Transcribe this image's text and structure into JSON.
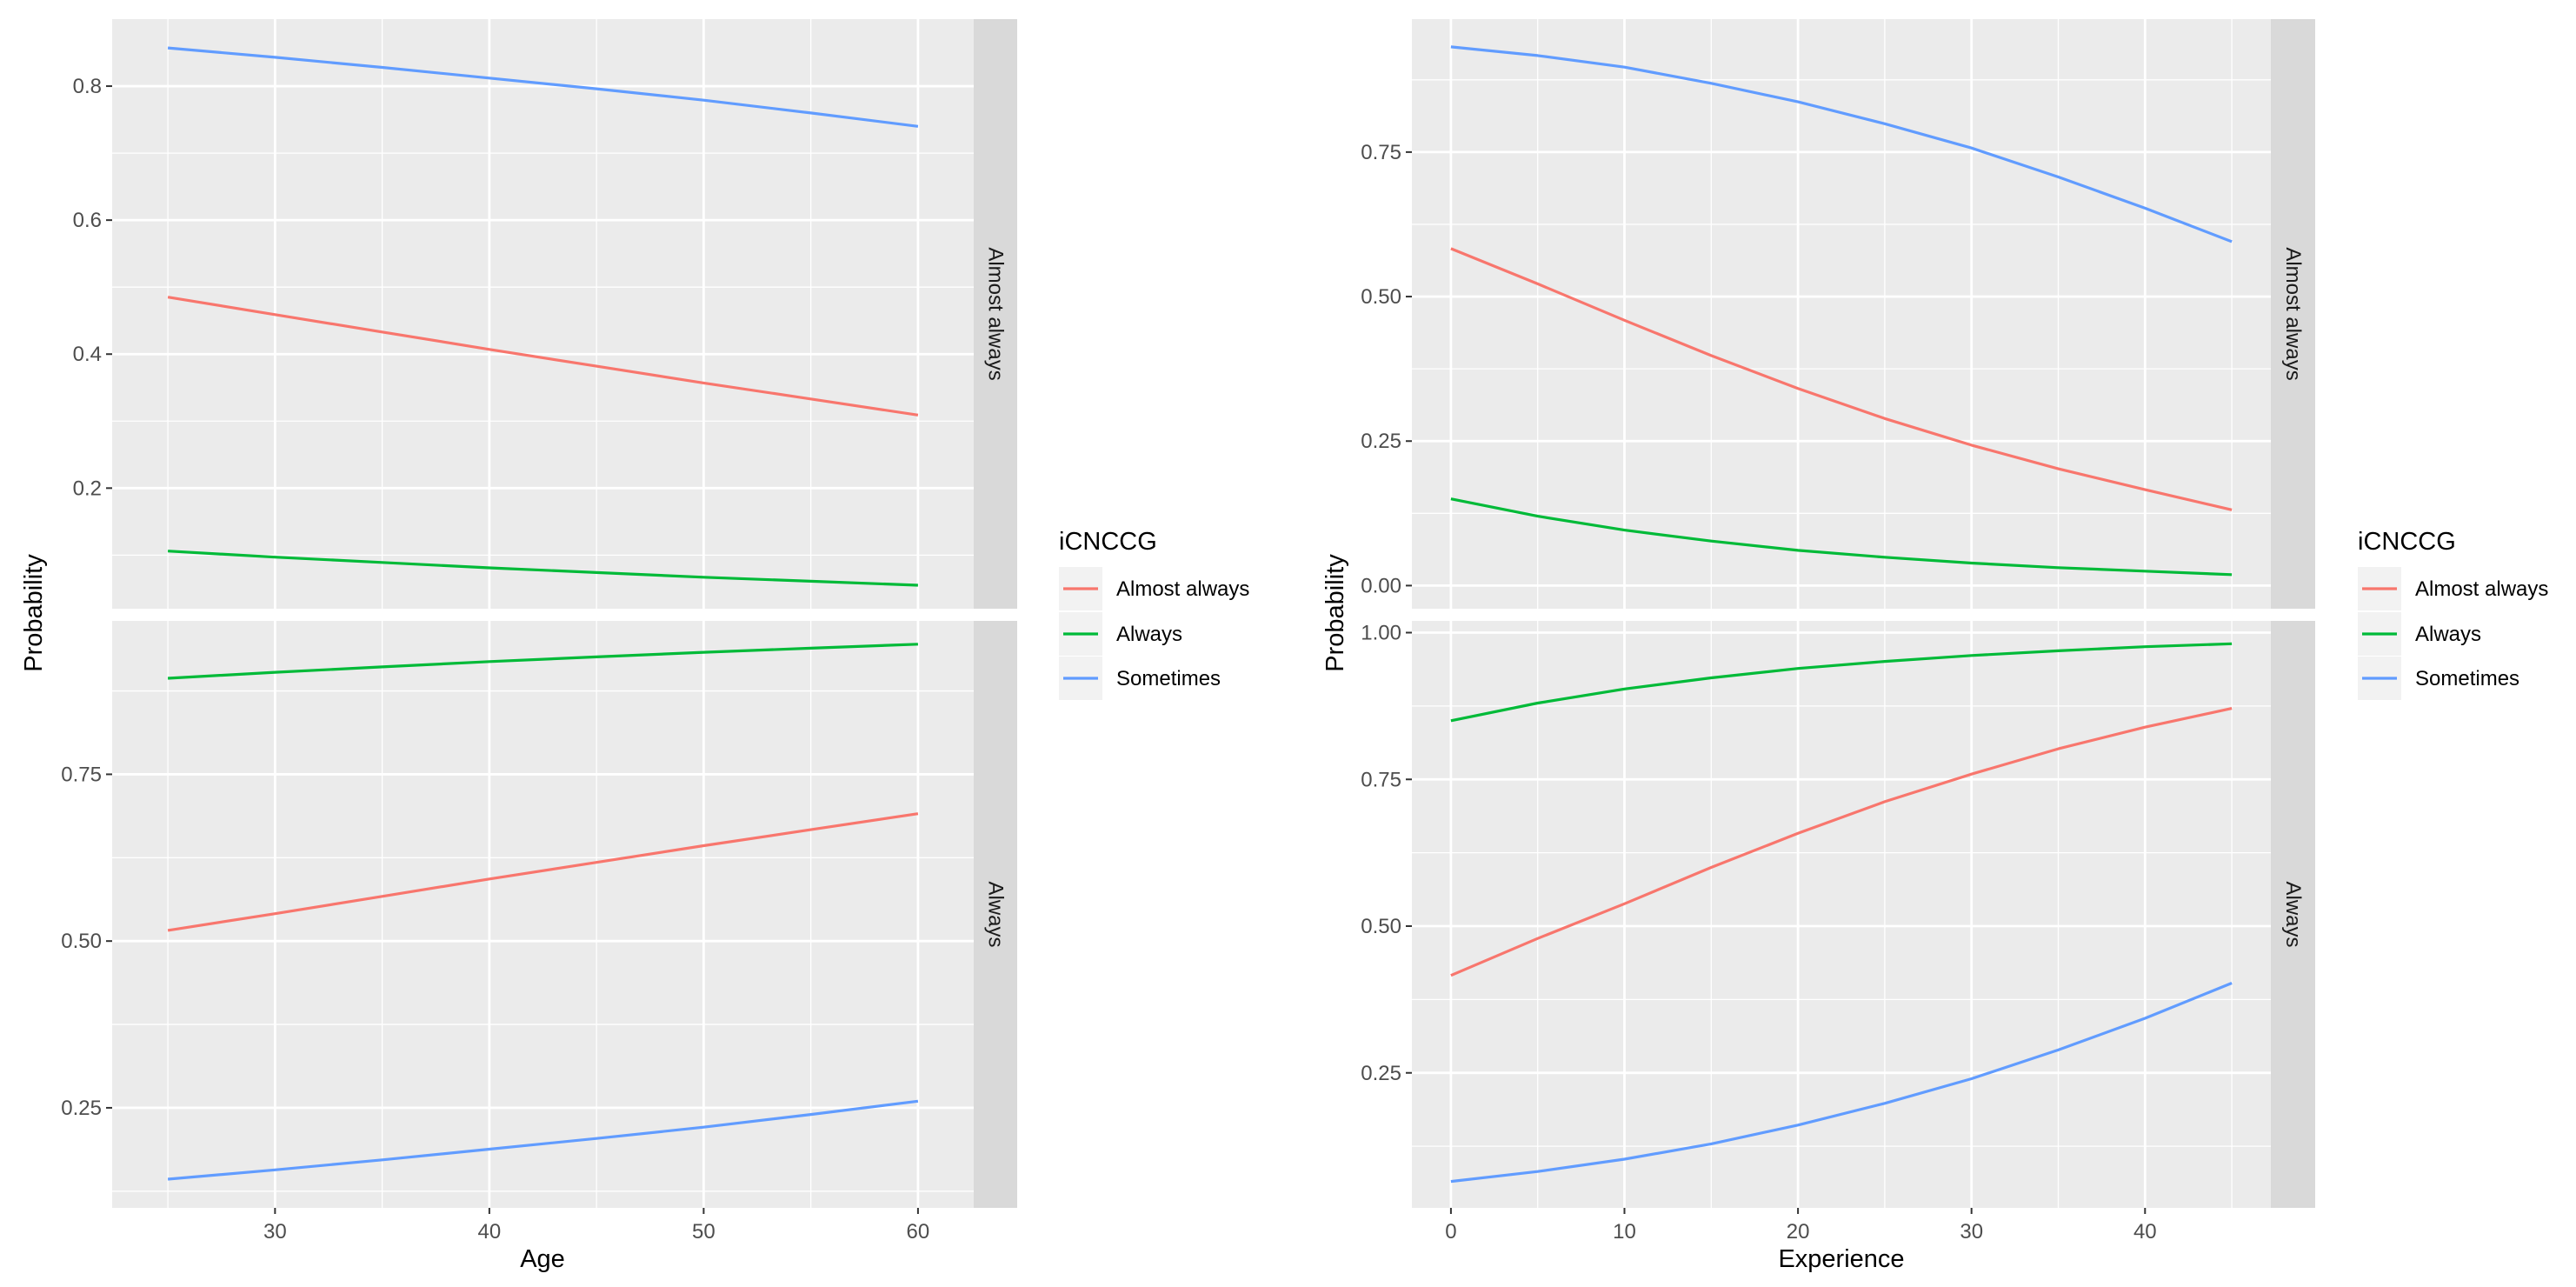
{
  "chart_data": [
    {
      "type": "line",
      "xlabel": "Age",
      "ylabel": "Probability",
      "xlim": [
        22.4,
        62.6
      ],
      "xticks": [
        30,
        40,
        50,
        60
      ],
      "x": [
        25,
        30,
        35,
        40,
        45,
        50,
        55,
        60
      ],
      "legend": {
        "title": "iCNCCG",
        "position": "right"
      },
      "series_names": [
        "Almost always",
        "Always",
        "Sometimes"
      ],
      "panels": [
        {
          "strip": "Almost always",
          "ylim": [
            0.02,
            0.9
          ],
          "yticks": [
            0.2,
            0.4,
            0.6,
            0.8
          ],
          "series": [
            {
              "name": "Almost always",
              "values": [
                0.485,
                0.459,
                0.433,
                0.407,
                0.382,
                0.357,
                0.333,
                0.309
              ]
            },
            {
              "name": "Always",
              "values": [
                0.106,
                0.097,
                0.089,
                0.081,
                0.074,
                0.067,
                0.061,
                0.055
              ]
            },
            {
              "name": "Sometimes",
              "values": [
                0.857,
                0.843,
                0.828,
                0.812,
                0.796,
                0.779,
                0.76,
                0.74
              ]
            }
          ]
        },
        {
          "strip": "Always",
          "ylim": [
            0.1,
            0.98
          ],
          "yticks": [
            0.25,
            0.5,
            0.75
          ],
          "series": [
            {
              "name": "Almost always",
              "values": [
                0.516,
                0.541,
                0.567,
                0.593,
                0.618,
                0.643,
                0.667,
                0.691
              ]
            },
            {
              "name": "Always",
              "values": [
                0.894,
                0.903,
                0.911,
                0.919,
                0.926,
                0.933,
                0.939,
                0.945
              ]
            },
            {
              "name": "Sometimes",
              "values": [
                0.143,
                0.157,
                0.172,
                0.188,
                0.204,
                0.221,
                0.24,
                0.26
              ]
            }
          ]
        }
      ]
    },
    {
      "type": "line",
      "xlabel": "Experience",
      "ylabel": "Probability",
      "xlim": [
        -2.25,
        47.25
      ],
      "xticks": [
        0,
        10,
        20,
        30,
        40
      ],
      "x": [
        0,
        5,
        10,
        15,
        20,
        25,
        30,
        35,
        40,
        45
      ],
      "legend": {
        "title": "iCNCCG",
        "position": "right"
      },
      "series_names": [
        "Almost always",
        "Always",
        "Sometimes"
      ],
      "panels": [
        {
          "strip": "Almost always",
          "ylim": [
            -0.04,
            0.98
          ],
          "yticks": [
            0.0,
            0.25,
            0.5,
            0.75
          ],
          "series": [
            {
              "name": "Almost always",
              "values": [
                0.583,
                0.522,
                0.459,
                0.398,
                0.341,
                0.289,
                0.243,
                0.202,
                0.166,
                0.131
              ]
            },
            {
              "name": "Always",
              "values": [
                0.15,
                0.12,
                0.096,
                0.077,
                0.061,
                0.049,
                0.039,
                0.031,
                0.025,
                0.019
              ]
            },
            {
              "name": "Sometimes",
              "values": [
                0.932,
                0.917,
                0.897,
                0.869,
                0.837,
                0.799,
                0.757,
                0.707,
                0.653,
                0.595
              ]
            }
          ]
        },
        {
          "strip": "Always",
          "ylim": [
            0.02,
            1.02
          ],
          "yticks": [
            0.25,
            0.5,
            0.75,
            1.0
          ],
          "series": [
            {
              "name": "Almost always",
              "values": [
                0.416,
                0.479,
                0.538,
                0.6,
                0.658,
                0.712,
                0.759,
                0.802,
                0.839,
                0.871
              ]
            },
            {
              "name": "Always",
              "values": [
                0.85,
                0.88,
                0.904,
                0.923,
                0.939,
                0.951,
                0.961,
                0.969,
                0.976,
                0.981
              ]
            },
            {
              "name": "Sometimes",
              "values": [
                0.065,
                0.082,
                0.103,
                0.129,
                0.161,
                0.198,
                0.24,
                0.289,
                0.343,
                0.403
              ]
            }
          ]
        }
      ]
    }
  ],
  "colors": {
    "Almost always": "#F8766D",
    "Always": "#00BA38",
    "Sometimes": "#619CFF",
    "panel_bg": "#EBEBEB",
    "strip_bg": "#D9D9D9",
    "grid": "#FFFFFF",
    "tick_text": "#4D4D4D"
  }
}
